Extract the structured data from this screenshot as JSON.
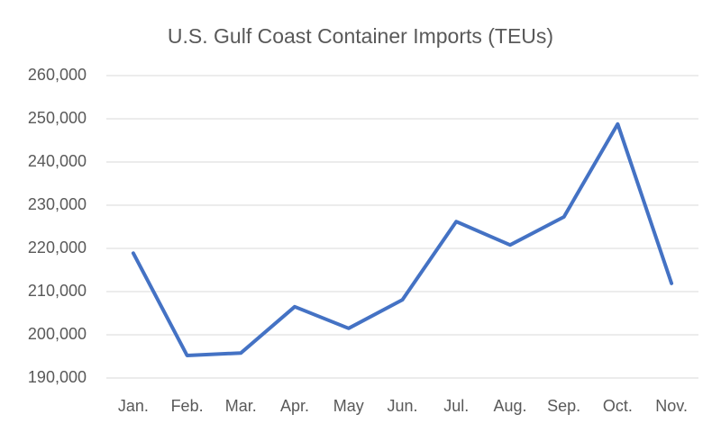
{
  "chart_data": {
    "type": "line",
    "title": "U.S. Gulf Coast Container Imports (TEUs)",
    "categories": [
      "Jan.",
      "Feb.",
      "Mar.",
      "Apr.",
      "May",
      "Jun.",
      "Jul.",
      "Aug.",
      "Sep.",
      "Oct.",
      "Nov."
    ],
    "values": [
      218900,
      195200,
      195800,
      206500,
      201500,
      208100,
      226200,
      220800,
      227300,
      248800,
      211900
    ],
    "color": "#4472c4",
    "ylim": [
      190000,
      260000
    ],
    "yticks": [
      {
        "value": 190000,
        "label": "190,000"
      },
      {
        "value": 200000,
        "label": "200,000"
      },
      {
        "value": 210000,
        "label": "210,000"
      },
      {
        "value": 220000,
        "label": "220,000"
      },
      {
        "value": 230000,
        "label": "230,000"
      },
      {
        "value": 240000,
        "label": "240,000"
      },
      {
        "value": 250000,
        "label": "250,000"
      },
      {
        "value": 260000,
        "label": "260,000"
      }
    ],
    "grid": true
  }
}
